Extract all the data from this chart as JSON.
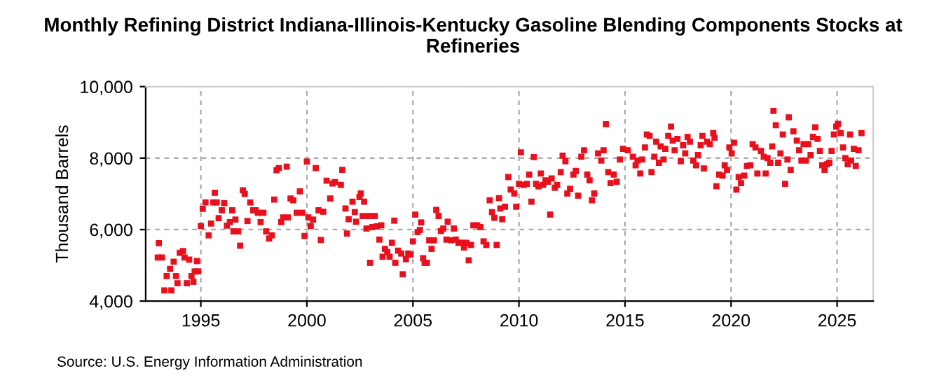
{
  "chart_data": {
    "type": "scatter",
    "title": "Monthly Refining District Indiana-Illinois-Kentucky Gasoline Blending Components Stocks at Refineries",
    "ylabel": "Thousand Barrels",
    "annotations": [
      "Source: U.S. Energy Information Administration"
    ],
    "xlim": [
      1992.4,
      2026.7
    ],
    "xticks": [
      1995,
      2000,
      2005,
      2010,
      2015,
      2020,
      2025
    ],
    "ylim": [
      4000,
      10000
    ],
    "yticks": [
      {
        "value": 4000,
        "label": "4,000"
      },
      {
        "value": 6000,
        "label": "6,000"
      },
      {
        "value": 8000,
        "label": "8,000"
      },
      {
        "value": 10000,
        "label": "10,000"
      }
    ],
    "grid": true,
    "marker": "square",
    "series": [
      {
        "color": "#e8101c",
        "x": [
          1993.02,
          1992.97,
          1993.17,
          1993.28,
          1993.39,
          1993.55,
          1993.61,
          1993.72,
          1993.83,
          1993.9,
          1994.01,
          1994.16,
          1994.23,
          1994.34,
          1994.45,
          1994.56,
          1994.65,
          1994.71,
          1994.82,
          1994.87,
          1995.0,
          1995.09,
          1995.22,
          1995.37,
          1995.48,
          1995.59,
          1995.66,
          1995.75,
          1995.84,
          1995.99,
          1996.1,
          1996.23,
          1996.37,
          1996.48,
          1996.54,
          1996.63,
          1996.76,
          1996.85,
          1996.98,
          1997.07,
          1997.2,
          1997.33,
          1997.47,
          1997.58,
          1997.69,
          1997.82,
          1997.95,
          1998.08,
          1998.22,
          1998.35,
          1998.46,
          1998.57,
          1998.68,
          1998.79,
          1998.88,
          1999.05,
          1999.1,
          1999.23,
          1999.36,
          1999.52,
          1999.67,
          1999.78,
          1999.89,
          2000.0,
          2000.07,
          2000.18,
          2000.29,
          2000.42,
          2000.55,
          2000.66,
          2000.77,
          2000.93,
          2001.1,
          2001.21,
          2001.32,
          2001.6,
          2001.67,
          2001.82,
          2001.89,
          2001.97,
          2002.15,
          2002.26,
          2002.32,
          2002.48,
          2002.54,
          2002.63,
          2002.7,
          2002.81,
          2002.92,
          2002.98,
          2003.09,
          2003.2,
          2003.29,
          2003.42,
          2003.51,
          2003.57,
          2003.68,
          2003.79,
          2003.9,
          2004.01,
          2004.12,
          2004.17,
          2004.3,
          2004.45,
          2004.52,
          2004.67,
          2004.78,
          2004.89,
          2005.0,
          2005.11,
          2005.22,
          2005.33,
          2005.39,
          2005.48,
          2005.55,
          2005.66,
          2005.77,
          2005.88,
          2005.99,
          2006.1,
          2006.21,
          2006.32,
          2006.43,
          2006.58,
          2006.64,
          2006.8,
          2006.93,
          2007.02,
          2007.15,
          2007.3,
          2007.41,
          2007.52,
          2007.63,
          2007.74,
          2007.85,
          2008.03,
          2008.18,
          2008.33,
          2008.46,
          2008.62,
          2008.73,
          2008.84,
          2008.95,
          2009.06,
          2009.12,
          2009.21,
          2009.34,
          2009.5,
          2009.61,
          2009.78,
          2009.87,
          2010.0,
          2010.09,
          2010.22,
          2010.37,
          2010.48,
          2010.59,
          2010.7,
          2010.81,
          2010.92,
          2011.03,
          2011.14,
          2011.25,
          2011.36,
          2011.47,
          2011.54,
          2011.69,
          2011.8,
          2011.97,
          2012.06,
          2012.19,
          2012.28,
          2012.41,
          2012.57,
          2012.68,
          2012.79,
          2012.94,
          2013.07,
          2013.22,
          2013.33,
          2013.44,
          2013.55,
          2013.73,
          2013.88,
          2013.99,
          2014.1,
          2014.21,
          2014.32,
          2014.47,
          2014.61,
          2014.76,
          2014.91,
          2015.13,
          2015.37,
          2015.5,
          2015.59,
          2015.72,
          2015.81,
          2015.94,
          2016.03,
          2016.16,
          2016.25,
          2016.38,
          2016.47,
          2016.6,
          2016.68,
          2016.82,
          2016.9,
          2017.04,
          2017.17,
          2017.25,
          2017.34,
          2017.47,
          2017.63,
          2017.74,
          2017.84,
          2017.95,
          2018.06,
          2018.22,
          2018.35,
          2018.44,
          2018.57,
          2018.65,
          2018.72,
          2018.87,
          2019.0,
          2019.16,
          2019.22,
          2019.31,
          2019.44,
          2019.6,
          2019.7,
          2019.81,
          2019.92,
          2020.03,
          2020.14,
          2020.25,
          2020.36,
          2020.47,
          2020.62,
          2020.75,
          2020.91,
          2021.02,
          2021.15,
          2021.24,
          2021.41,
          2021.54,
          2021.63,
          2021.72,
          2021.85,
          2021.94,
          2022.0,
          2022.11,
          2022.22,
          2022.33,
          2022.44,
          2022.55,
          2022.66,
          2022.72,
          2022.81,
          2022.94,
          2023.1,
          2023.21,
          2023.32,
          2023.42,
          2023.53,
          2023.64,
          2023.75,
          2023.86,
          2023.97,
          2024.08,
          2024.19,
          2024.3,
          2024.41,
          2024.52,
          2024.63,
          2024.74,
          2024.85,
          2024.96,
          2025.04,
          2025.17,
          2025.28,
          2025.39,
          2025.5,
          2025.61,
          2025.66,
          2025.79,
          2025.88,
          2026.01,
          2026.15
        ],
        "values": [
          5620,
          5220,
          5220,
          4300,
          4700,
          4900,
          4300,
          5100,
          4700,
          4500,
          5350,
          5400,
          5220,
          4500,
          5160,
          4700,
          4540,
          4830,
          5120,
          4830,
          6100,
          6580,
          6760,
          5840,
          6170,
          6760,
          7030,
          6760,
          6320,
          6540,
          6740,
          6110,
          6210,
          6540,
          5950,
          6280,
          5950,
          5550,
          7100,
          7000,
          6240,
          6760,
          6540,
          6540,
          6470,
          6210,
          6470,
          5950,
          5750,
          5840,
          6840,
          7660,
          7720,
          6210,
          6340,
          7760,
          6340,
          6870,
          6820,
          6470,
          7070,
          6470,
          5820,
          7900,
          6340,
          6100,
          6280,
          7720,
          6540,
          5710,
          6500,
          7370,
          6870,
          7290,
          7330,
          7250,
          7670,
          6590,
          5890,
          6290,
          6780,
          6490,
          6220,
          6910,
          7010,
          6380,
          6780,
          6030,
          6380,
          5070,
          6070,
          6380,
          6090,
          5720,
          6120,
          5240,
          5460,
          5370,
          5240,
          5630,
          6250,
          5070,
          5410,
          5330,
          4750,
          5170,
          5330,
          5300,
          5670,
          6420,
          5930,
          5990,
          6200,
          5200,
          5070,
          5070,
          5700,
          5460,
          5700,
          6550,
          6380,
          5960,
          6030,
          5720,
          6220,
          5700,
          6030,
          5720,
          5630,
          5630,
          5500,
          5630,
          5140,
          5570,
          6120,
          6120,
          6070,
          5670,
          5570,
          6820,
          6490,
          6330,
          5570,
          6880,
          6590,
          6290,
          6640,
          7470,
          7120,
          7010,
          6640,
          7280,
          8160,
          7250,
          7280,
          7540,
          6780,
          8030,
          7280,
          7210,
          7570,
          7250,
          7380,
          7340,
          6420,
          7430,
          7170,
          7250,
          7610,
          8070,
          7910,
          7010,
          7140,
          7540,
          7640,
          6950,
          8040,
          8220,
          7540,
          7380,
          6820,
          7010,
          8130,
          7930,
          8220,
          8950,
          7610,
          7300,
          7540,
          7340,
          7960,
          8260,
          8220,
          8040,
          7800,
          7930,
          7570,
          7960,
          8300,
          8660,
          8620,
          7610,
          8040,
          8460,
          7870,
          8330,
          7960,
          8260,
          8620,
          8880,
          8490,
          8220,
          8540,
          7910,
          8360,
          8130,
          8590,
          8460,
          7930,
          7800,
          8090,
          8360,
          8620,
          7710,
          8460,
          8390,
          8700,
          8570,
          7210,
          7540,
          7510,
          7800,
          7670,
          8300,
          8130,
          8430,
          7120,
          7470,
          7300,
          7510,
          7780,
          7800,
          8390,
          8300,
          7570,
          8200,
          8040,
          7570,
          8000,
          7870,
          8330,
          9320,
          8920,
          7870,
          8130,
          8660,
          7280,
          7960,
          9140,
          7670,
          8750,
          8490,
          8220,
          7930,
          8390,
          7930,
          8390,
          8090,
          8590,
          8860,
          8540,
          8200,
          7800,
          7670,
          7830,
          7870,
          8200,
          8660,
          8880,
          8960,
          8700,
          8300,
          8000,
          7830,
          8660,
          7930,
          8260,
          7780,
          8220,
          8700
        ]
      }
    ]
  }
}
